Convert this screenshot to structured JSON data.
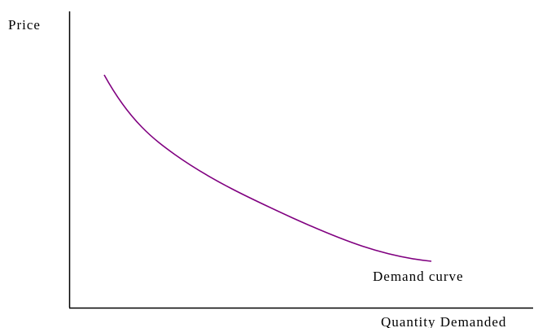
{
  "labels": {
    "y_axis": "Price",
    "curve": "Demand curve",
    "x_axis": "Quantity Demanded"
  }
}
